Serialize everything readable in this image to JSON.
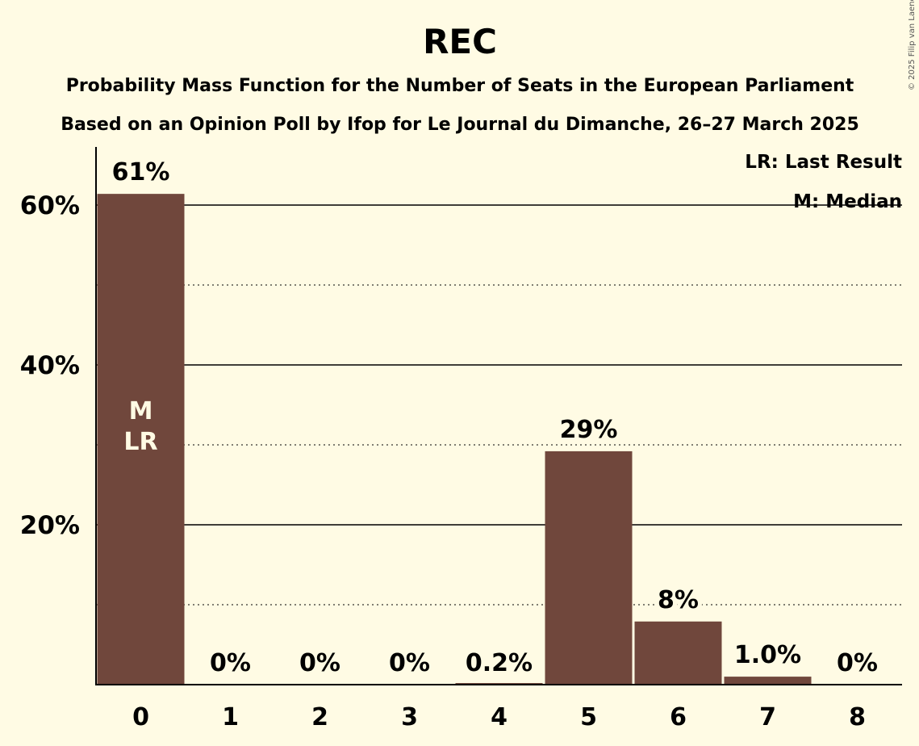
{
  "title": "REC",
  "subtitle_lines": [
    "Probability Mass Function for the Number of Seats in the European Parliament",
    "Based on an Opinion Poll by Ifop for Le Journal du Dimanche, 26–27 March 2025"
  ],
  "copyright": "© 2025 Filip van Laenen",
  "legend": {
    "last_result": "LR: Last Result",
    "median": "M: Median"
  },
  "colors": {
    "bar": "#70473c",
    "background": "#fffbe4"
  },
  "chart_data": {
    "type": "bar",
    "categories": [
      "0",
      "1",
      "2",
      "3",
      "4",
      "5",
      "6",
      "7",
      "8"
    ],
    "values": [
      61.4,
      0,
      0,
      0,
      0.2,
      29.2,
      7.9,
      1.0,
      0
    ],
    "data_labels": [
      "61%",
      "0%",
      "0%",
      "0%",
      "0.2%",
      "29%",
      "8%",
      "1.0%",
      "0%"
    ],
    "in_bar_labels": {
      "0": [
        "M",
        "LR"
      ]
    },
    "y_ticks": [
      20,
      40,
      60
    ],
    "y_tick_labels": [
      "20%",
      "40%",
      "60%"
    ],
    "ylim": [
      0,
      67
    ],
    "grid": "solid lines at 20% steps, dotted lines at 10% steps",
    "xlabel": "",
    "ylabel": ""
  }
}
